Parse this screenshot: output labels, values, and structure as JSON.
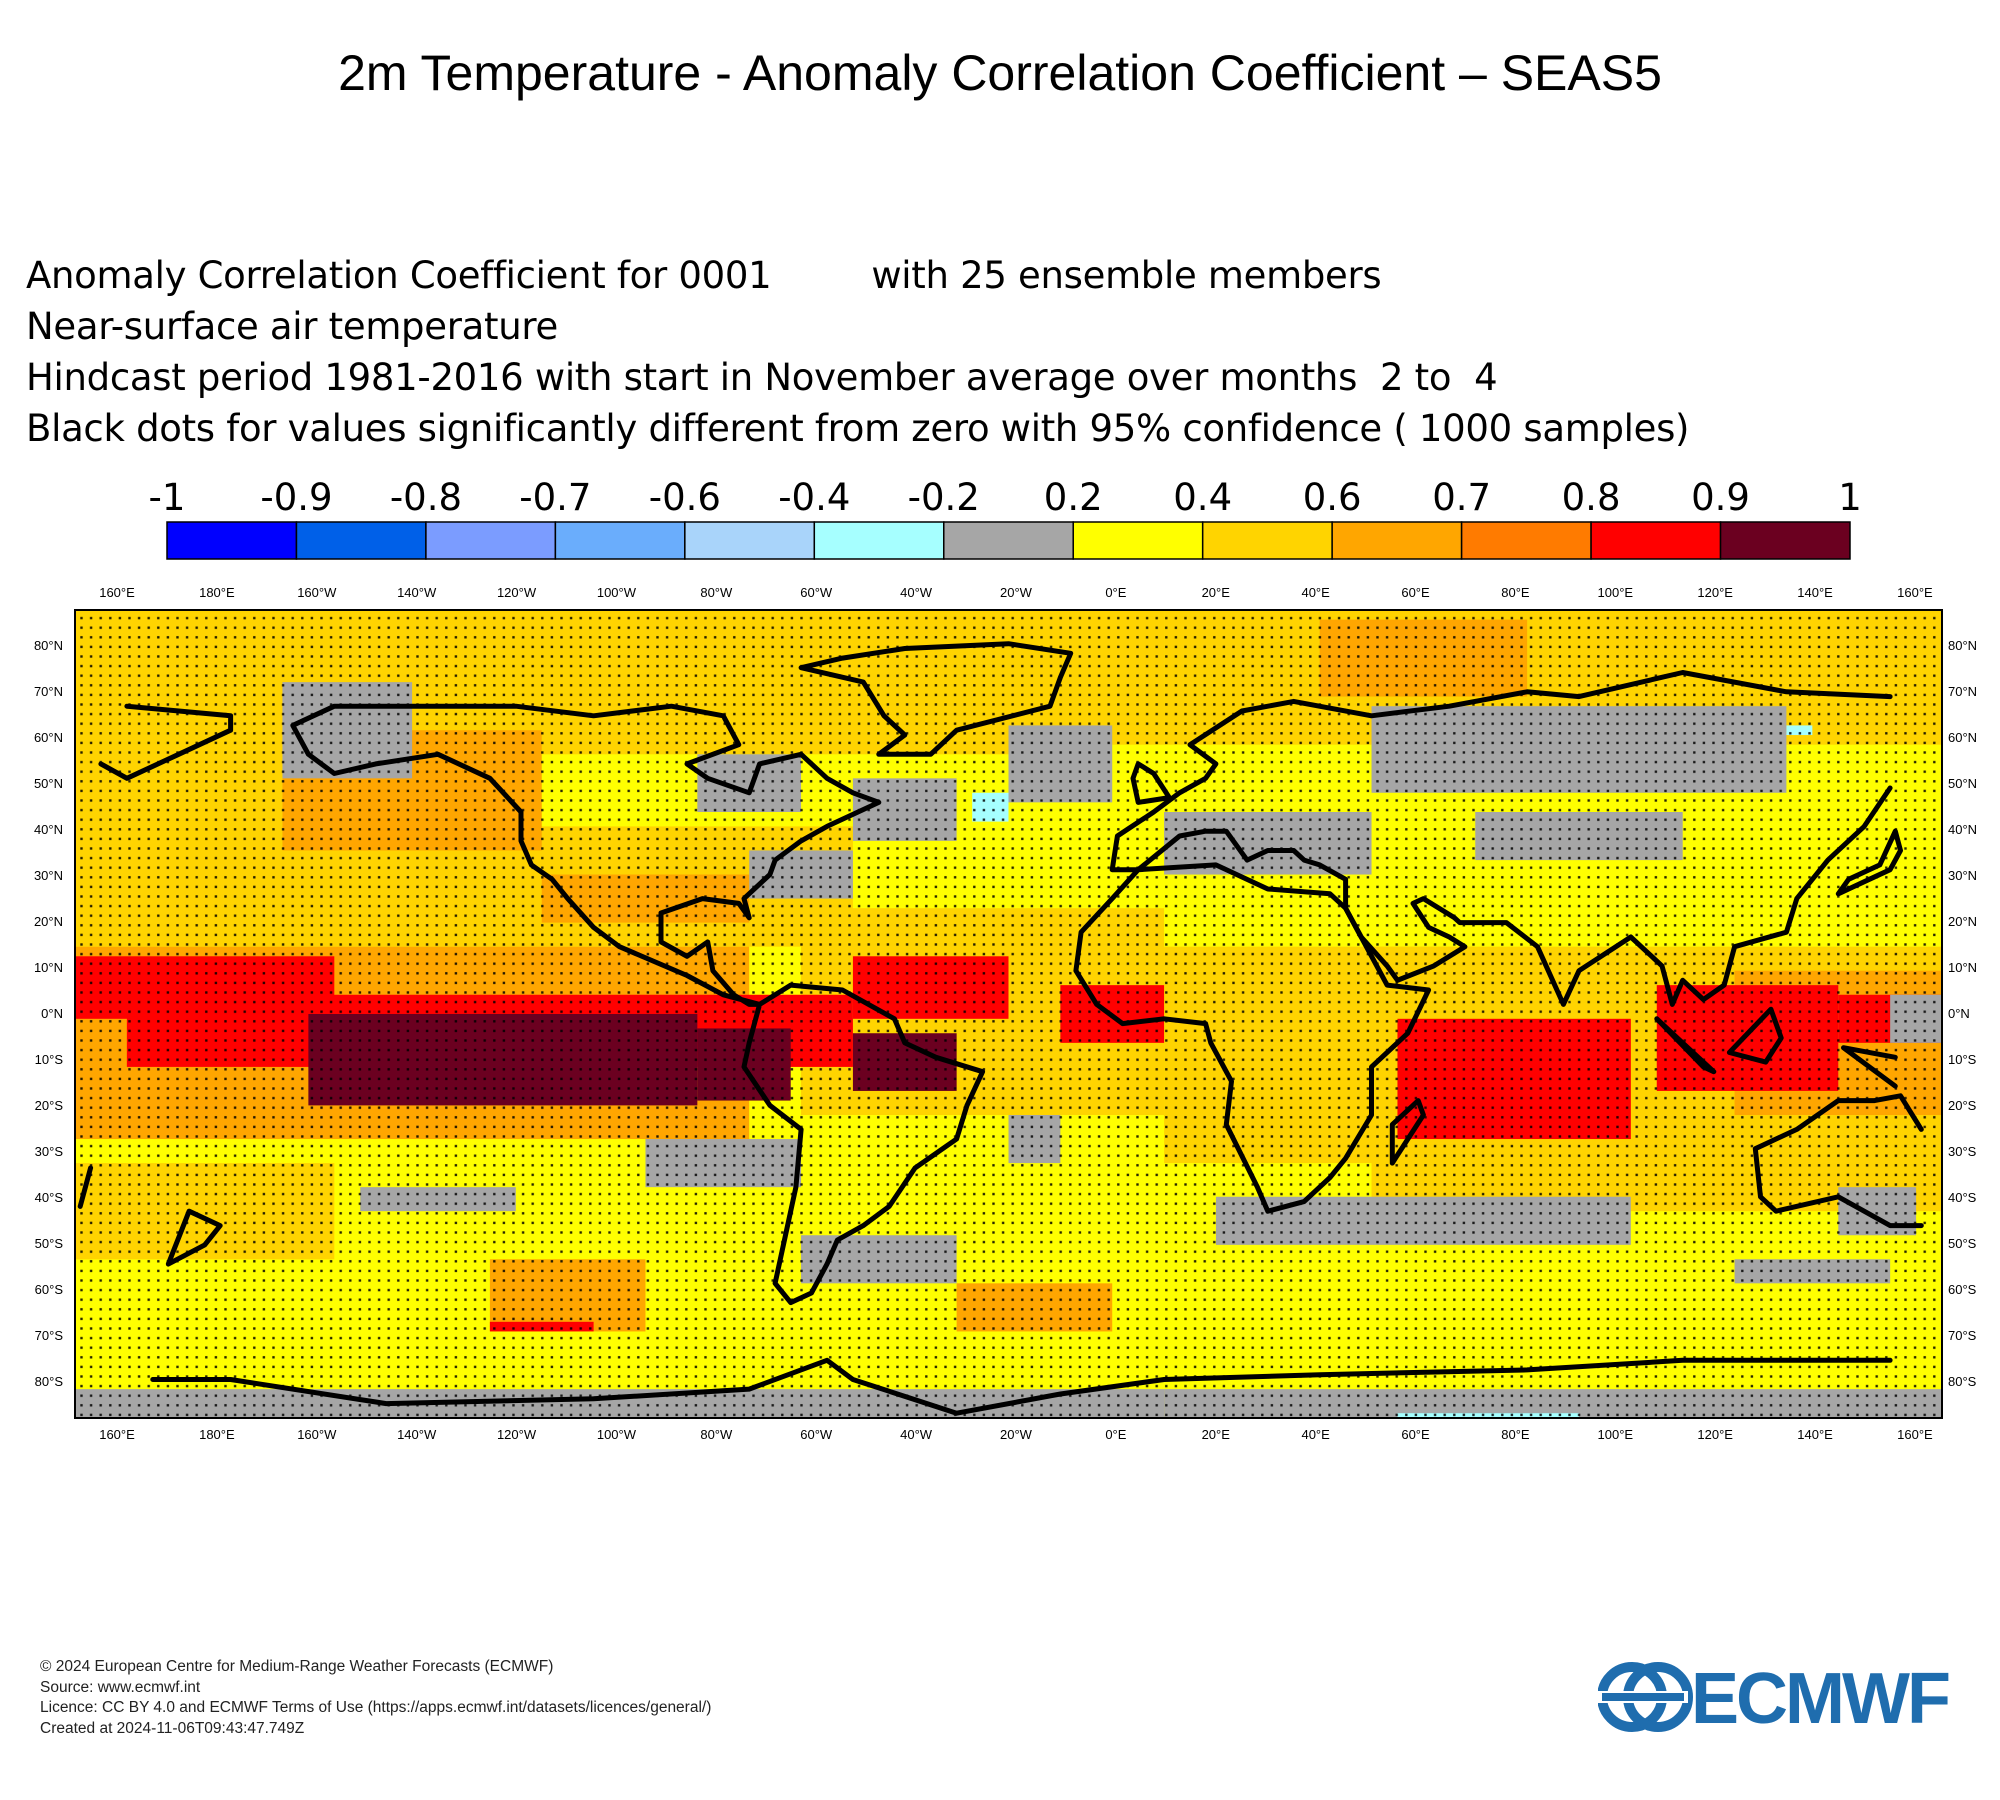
{
  "title": "2m Temperature - Anomaly Correlation Coefficient – SEAS5",
  "subtitle": {
    "line1a": "Anomaly Correlation Coefficient for 0001",
    "line1b": "with 25 ensemble members",
    "line2": "Near-surface air temperature",
    "line3": "Hindcast period 1981-2016 with start in November average over months  2 to  4",
    "line4": "Black dots for values significantly different from zero with 95% confidence ( 1000 samples)"
  },
  "legend": {
    "tick_labels": [
      "-1",
      "-0.9",
      "-0.8",
      "-0.7",
      "-0.6",
      "-0.4",
      "-0.2",
      "0.2",
      "0.4",
      "0.6",
      "0.7",
      "0.8",
      "0.9",
      "1"
    ],
    "colors": [
      "#0000ff",
      "#0060e8",
      "#7b9cff",
      "#6aadfc",
      "#a9d4fa",
      "#a6ffff",
      "#a6a6a6",
      "#ffff00",
      "#ffd400",
      "#ffa600",
      "#ff7b00",
      "#ff0000",
      "#6b0020"
    ]
  },
  "map": {
    "projection": "plate-carree",
    "lon_labels": [
      "160°E",
      "180°E",
      "160°W",
      "140°W",
      "120°W",
      "100°W",
      "80°W",
      "60°W",
      "40°W",
      "20°W",
      "0°E",
      "20°E",
      "40°E",
      "60°E",
      "80°E",
      "100°E",
      "120°E",
      "140°E",
      "160°E"
    ],
    "lat_labels": [
      "80°N",
      "70°N",
      "60°N",
      "50°N",
      "40°N",
      "30°N",
      "20°N",
      "10°N",
      "0°N",
      "10°S",
      "20°S",
      "30°S",
      "40°S",
      "50°S",
      "60°S",
      "70°S",
      "80°S"
    ],
    "significance_marker": "black dots",
    "coastline_color": "#000000"
  },
  "footer": {
    "copyright": "© 2024 European Centre for Medium-Range Weather Forecasts (ECMWF)",
    "source": "Source: www.ecmwf.int",
    "licence": "Licence: CC BY 4.0 and ECMWF Terms of Use (https://apps.ecmwf.int/datasets/licences/general/)",
    "created": "Created at 2024-11-06T09:43:47.749Z"
  },
  "logo": {
    "text": "ECMWF",
    "color": "#1f6dae"
  }
}
